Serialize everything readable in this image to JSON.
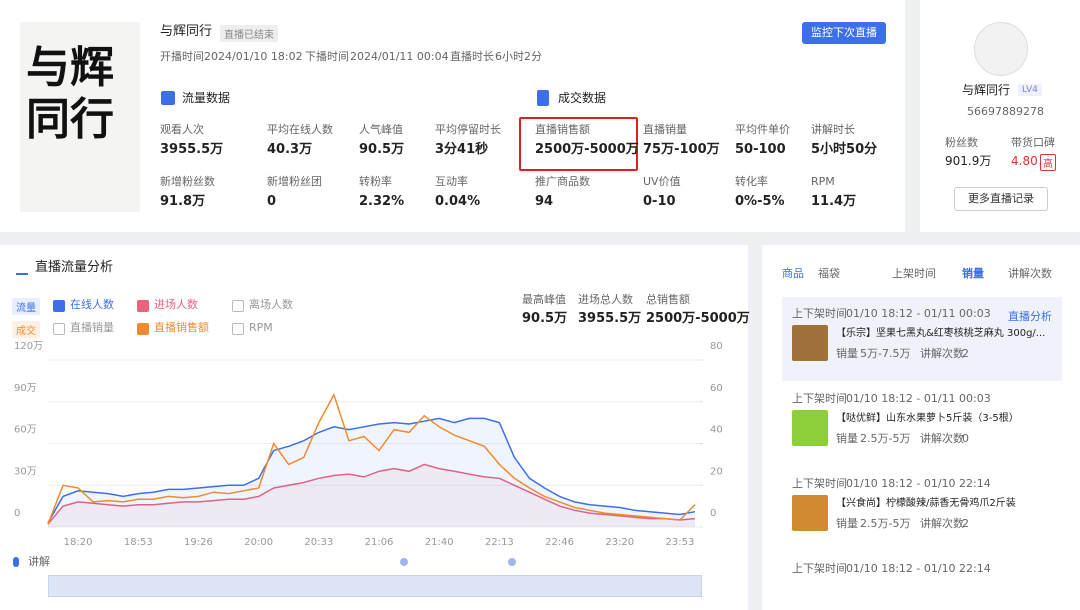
{
  "header": {
    "cover_title": "与辉同行",
    "title": "与辉同行",
    "status": "直播已结束",
    "start_label": "开播时间",
    "start": "2024/01/10 18:02",
    "end_label": "下播时间",
    "end": "2024/01/11 00:04",
    "duration_label": "直播时长",
    "duration": "6小时2分",
    "button": "监控下次直播"
  },
  "traffic": {
    "title": "流量数据",
    "metrics": [
      {
        "label": "观看人次",
        "value": "3955.5万"
      },
      {
        "label": "平均在线人数",
        "value": "40.3万"
      },
      {
        "label": "人气峰值",
        "value": "90.5万"
      },
      {
        "label": "平均停留时长",
        "value": "3分41秒"
      },
      {
        "label": "新增粉丝数",
        "value": "91.8万"
      },
      {
        "label": "新增粉丝团",
        "value": "0"
      },
      {
        "label": "转粉率",
        "value": "2.32%"
      },
      {
        "label": "互动率",
        "value": "0.04%"
      }
    ]
  },
  "sales": {
    "title": "成交数据",
    "metrics": [
      {
        "label": "直播销售额",
        "value": "2500万-5000万"
      },
      {
        "label": "直播销量",
        "value": "75万-100万"
      },
      {
        "label": "平均件单价",
        "value": "50-100"
      },
      {
        "label": "讲解时长",
        "value": "5小时50分"
      },
      {
        "label": "推广商品数",
        "value": "94"
      },
      {
        "label": "UV价值",
        "value": "0-10"
      },
      {
        "label": "转化率",
        "value": "0%-5%"
      },
      {
        "label": "RPM",
        "value": "11.4万"
      }
    ]
  },
  "profile": {
    "name": "与辉同行",
    "level": "LV4",
    "id": "56697889278",
    "fans_label": "粉丝数",
    "fans": "901.9万",
    "rep_label": "带货口碑",
    "rep": "4.80",
    "rep_tag": "高",
    "button": "更多直播记录"
  },
  "analysis": {
    "title": "直播流量分析",
    "row_labels": [
      "流量",
      "成交"
    ],
    "legend_off": [
      "离场人数",
      "直播销量",
      "RPM"
    ],
    "summary": [
      {
        "label": "最高峰值",
        "value": "90.5万"
      },
      {
        "label": "进场总人数",
        "value": "3955.5万"
      },
      {
        "label": "总销售额",
        "value": "2500万-5000万"
      }
    ],
    "explain": "讲解"
  },
  "chart_data": {
    "type": "line",
    "categories": [
      null,
      null,
      "18:20",
      null,
      null,
      null,
      "18:53",
      null,
      null,
      null,
      "19:26",
      null,
      null,
      null,
      "20:00",
      null,
      null,
      null,
      "20:33",
      null,
      null,
      null,
      "21:06",
      null,
      null,
      null,
      "21:40",
      null,
      null,
      null,
      "22:13",
      null,
      null,
      null,
      "22:46",
      null,
      null,
      null,
      "23:20",
      null,
      null,
      null,
      "23:53",
      null
    ],
    "ylim": [
      0,
      120
    ],
    "yticks": [
      0,
      {
        "value": 30,
        "label": "30万"
      },
      {
        "value": 60,
        "label": "60万"
      },
      {
        "value": 90,
        "label": "90万"
      },
      {
        "value": 120,
        "label": "120万"
      }
    ],
    "y2lim": [
      0,
      80
    ],
    "y2ticks": [
      0,
      20,
      40,
      60,
      80
    ],
    "grid": true,
    "series": [
      {
        "name": "在线人数",
        "color": "#3d6fe8",
        "values": [
          3,
          22,
          26,
          25,
          24,
          22,
          24,
          25,
          27,
          27,
          28,
          29,
          30,
          30,
          35,
          55,
          58,
          62,
          68,
          72,
          70,
          72,
          74,
          75,
          74,
          76,
          78,
          75,
          78,
          78,
          75,
          50,
          35,
          28,
          22,
          18,
          16,
          15,
          14,
          12,
          11,
          10,
          9,
          11
        ]
      },
      {
        "name": "进场人数",
        "color": "#e8637e",
        "values": [
          2,
          15,
          18,
          17,
          16,
          15,
          16,
          16,
          17,
          18,
          18,
          19,
          20,
          20,
          22,
          28,
          30,
          32,
          35,
          37,
          38,
          36,
          40,
          42,
          40,
          45,
          42,
          40,
          38,
          36,
          35,
          30,
          25,
          20,
          15,
          12,
          10,
          9,
          8,
          7,
          6,
          6,
          5,
          6
        ]
      },
      {
        "name": "直播销售额",
        "color": "#f08a30",
        "values": [
          2,
          30,
          28,
          18,
          19,
          18,
          20,
          20,
          22,
          21,
          22,
          25,
          24,
          26,
          28,
          60,
          45,
          50,
          75,
          95,
          62,
          65,
          55,
          70,
          68,
          80,
          72,
          66,
          62,
          58,
          45,
          35,
          28,
          22,
          18,
          14,
          12,
          10,
          9,
          8,
          7,
          6,
          5,
          16
        ]
      }
    ]
  },
  "products": {
    "tabs": [
      "商品",
      "福袋"
    ],
    "sorts": [
      "上架时间",
      "销量",
      "讲解次数"
    ],
    "link": "直播分析",
    "items": [
      {
        "time_label": "上下架时间",
        "time": "01/10 18:12 - 01/11 00:03",
        "name": "【乐宗】坚果七黑丸&红枣核桃芝麻丸 300g/...",
        "sales_label": "销量",
        "sales": "5万-7.5万",
        "explain_label": "讲解次数",
        "explain": "2"
      },
      {
        "time_label": "上下架时间",
        "time": "01/10 18:12 - 01/11 00:03",
        "name": "【哒优鲜】山东水果萝卜5斤装（3-5根）",
        "sales_label": "销量",
        "sales": "2.5万-5万",
        "explain_label": "讲解次数",
        "explain": "0"
      },
      {
        "time_label": "上下架时间",
        "time": "01/10 18:12 - 01/10 22:14",
        "name": "【兴食尚】柠檬酸辣/蒜香无骨鸡爪2斤装",
        "sales_label": "销量",
        "sales": "2.5万-5万",
        "explain_label": "讲解次数",
        "explain": "2"
      },
      {
        "time_label": "上下架时间",
        "time": "01/10 18:12 - 01/10 22:14"
      }
    ]
  }
}
